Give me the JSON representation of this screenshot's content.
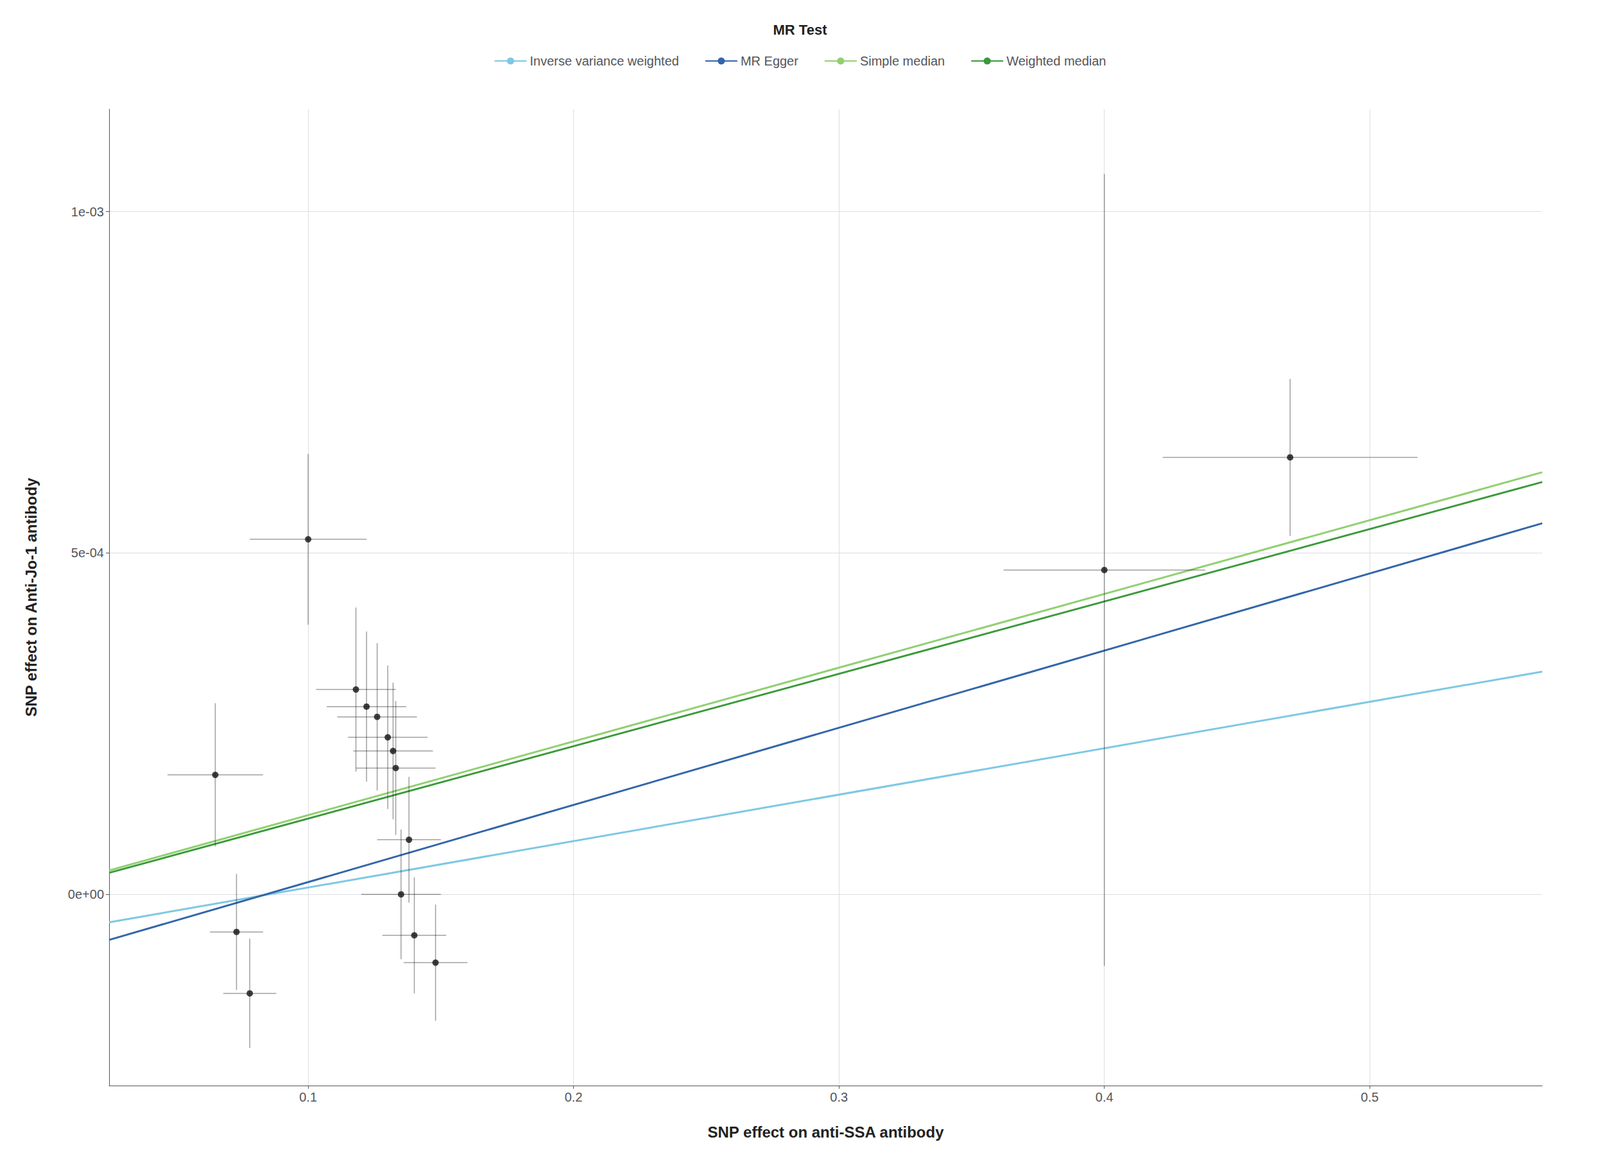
{
  "chart_data": {
    "type": "scatter",
    "xlabel": "SNP effect on anti-SSA antibody",
    "ylabel": "SNP effect on Anti-Jo-1 antibody",
    "legend_title": "MR Test",
    "legend": "top",
    "grid": true,
    "xlim": [
      0.025,
      0.565
    ],
    "ylim": [
      -0.00028,
      0.00115
    ],
    "xticks": [
      0.1,
      0.2,
      0.3,
      0.4,
      0.5
    ],
    "yticks": [
      {
        "value": 0.0,
        "label": "0e+00"
      },
      {
        "value": 0.0005,
        "label": "5e-04"
      },
      {
        "value": 0.001,
        "label": "1e-03"
      }
    ],
    "series": [
      {
        "name": "Inverse variance weighted",
        "type": "line",
        "color": "#7EC8E3",
        "x": [
          0.025,
          0.565
        ],
        "values": [
          -4.1e-05,
          0.0003262
        ]
      },
      {
        "name": "MR Egger",
        "type": "line",
        "color": "#3366AA",
        "x": [
          0.025,
          0.565
        ],
        "values": [
          -6.675e-05,
          0.00054345
        ]
      },
      {
        "name": "Simple median",
        "type": "line",
        "color": "#90D070",
        "x": [
          0.025,
          0.565
        ],
        "values": [
          3.5e-05,
          0.0006182
        ]
      },
      {
        "name": "Weighted median",
        "type": "line",
        "color": "#3A9A3A",
        "x": [
          0.025,
          0.565
        ],
        "values": [
          3.15e-05,
          0.0006039
        ]
      },
      {
        "type": "scatter",
        "color": "#111111",
        "x": [
          0.065,
          0.073,
          0.078,
          0.1,
          0.118,
          0.122,
          0.126,
          0.13,
          0.132,
          0.133,
          0.135,
          0.138,
          0.14,
          0.148,
          0.4,
          0.47
        ],
        "values": [
          0.000175,
          -5.5e-05,
          -0.000145,
          0.00052,
          0.0003,
          0.000275,
          0.00026,
          0.00023,
          0.00021,
          0.000185,
          0.0,
          8e-05,
          -6e-05,
          -0.0001,
          0.000475,
          0.00064
        ],
        "x_errors": [
          0.018,
          0.01,
          0.01,
          0.022,
          0.015,
          0.015,
          0.015,
          0.015,
          0.015,
          0.015,
          0.015,
          0.012,
          0.012,
          0.012,
          0.038,
          0.048
        ],
        "y_errors": [
          0.000105,
          8.5e-05,
          8e-05,
          0.000125,
          0.00012,
          0.00011,
          0.000108,
          0.000105,
          0.0001,
          9.8e-05,
          9.5e-05,
          9.2e-05,
          8.5e-05,
          8.5e-05,
          0.00058,
          0.000115
        ]
      }
    ]
  }
}
